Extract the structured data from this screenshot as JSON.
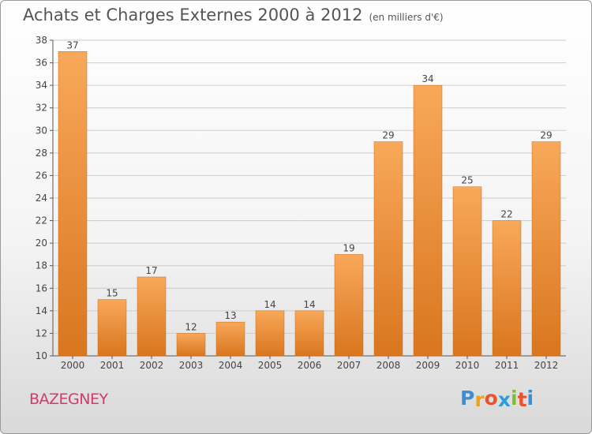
{
  "header": {
    "title": "Achats et Charges Externes 2000 à 2012",
    "subtitle": "(en milliers d'€)"
  },
  "commune": "BAZEGNEY",
  "logo": {
    "letters": [
      "P",
      "r",
      "o",
      "x",
      "i",
      "t",
      "i"
    ],
    "colors": [
      "#3a8fd6",
      "#f0a020",
      "#e8542b",
      "#2a9fd8",
      "#7cbf2f",
      "#e8542b",
      "#3a8fd6"
    ]
  },
  "colors": {
    "bar_top": "#f8a85a",
    "bar_bottom": "#d9761e",
    "axis": "#555555",
    "grid": "#cccccc"
  },
  "chart_data": {
    "type": "bar",
    "categories": [
      "2000",
      "2001",
      "2002",
      "2003",
      "2004",
      "2005",
      "2006",
      "2007",
      "2008",
      "2009",
      "2010",
      "2011",
      "2012"
    ],
    "values": [
      37,
      15,
      17,
      12,
      13,
      14,
      14,
      19,
      29,
      34,
      25,
      22,
      29
    ],
    "ylim": [
      10,
      38
    ],
    "yticks": [
      10,
      12,
      14,
      16,
      18,
      20,
      22,
      24,
      26,
      28,
      30,
      32,
      34,
      36,
      38
    ],
    "grid": true,
    "legend": "none"
  }
}
